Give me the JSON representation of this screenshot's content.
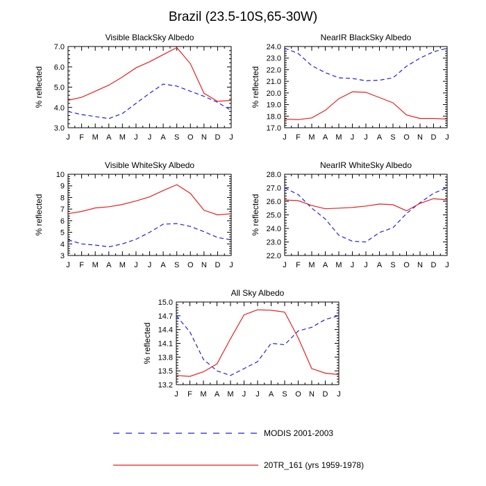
{
  "figure": {
    "title": "Brazil (23.5-10S,65-30W)",
    "months": [
      "J",
      "F",
      "M",
      "A",
      "M",
      "J",
      "J",
      "A",
      "S",
      "O",
      "N",
      "D",
      "J"
    ]
  },
  "legend": [
    {
      "label": "MODIS 2001-2003",
      "color": "#1f1fe6",
      "style": "dashed"
    },
    {
      "label": "20TR_161 (yrs 1959-1978)",
      "color": "#e61f1f",
      "style": "solid"
    }
  ],
  "chart_data": [
    {
      "type": "line",
      "title": "Visible BlackSky Albedo",
      "ylabel": "% reflected",
      "ylim": [
        3.0,
        7.0
      ],
      "yticks": [
        "3.0",
        "4.0",
        "5.0",
        "6.0",
        "7.0"
      ],
      "categories": [
        "J",
        "F",
        "M",
        "A",
        "M",
        "J",
        "J",
        "A",
        "S",
        "O",
        "N",
        "D",
        "J"
      ],
      "series": [
        {
          "name": "MODIS 2001-2003",
          "values": [
            3.8,
            3.65,
            3.55,
            3.45,
            3.7,
            4.2,
            4.7,
            5.15,
            5.05,
            4.8,
            4.55,
            4.25,
            3.85
          ]
        },
        {
          "name": "20TR_161 (yrs 1959-1978)",
          "values": [
            4.35,
            4.5,
            4.8,
            5.1,
            5.5,
            5.95,
            6.25,
            6.6,
            6.95,
            6.15,
            4.7,
            4.3,
            4.35
          ]
        }
      ]
    },
    {
      "type": "line",
      "title": "NearIR BlackSky Albedo",
      "ylabel": "% reflected",
      "ylim": [
        17.0,
        24.0
      ],
      "yticks": [
        "17.0",
        "18.0",
        "19.0",
        "20.0",
        "21.0",
        "22.0",
        "23.0",
        "24.0"
      ],
      "categories": [
        "J",
        "F",
        "M",
        "A",
        "M",
        "J",
        "J",
        "A",
        "S",
        "O",
        "N",
        "D",
        "J"
      ],
      "series": [
        {
          "name": "MODIS 2001-2003",
          "values": [
            23.85,
            23.4,
            22.35,
            21.75,
            21.3,
            21.25,
            21.05,
            21.1,
            21.3,
            22.3,
            23.0,
            23.55,
            23.85
          ]
        },
        {
          "name": "20TR_161 (yrs 1959-1978)",
          "values": [
            17.75,
            17.7,
            17.85,
            18.5,
            19.5,
            20.1,
            20.05,
            19.6,
            19.15,
            18.1,
            17.8,
            17.8,
            17.75
          ]
        }
      ]
    },
    {
      "type": "line",
      "title": "Visible WhiteSky Albedo",
      "ylabel": "% reflected",
      "ylim": [
        3,
        10
      ],
      "yticks": [
        "3",
        "4",
        "5",
        "6",
        "7",
        "8",
        "9",
        "10"
      ],
      "categories": [
        "J",
        "F",
        "M",
        "A",
        "M",
        "J",
        "J",
        "A",
        "S",
        "O",
        "N",
        "D",
        "J"
      ],
      "series": [
        {
          "name": "MODIS 2001-2003",
          "values": [
            4.35,
            4.0,
            3.9,
            3.75,
            4.0,
            4.4,
            5.0,
            5.7,
            5.75,
            5.5,
            5.05,
            4.55,
            4.35
          ]
        },
        {
          "name": "20TR_161 (yrs 1959-1978)",
          "values": [
            6.6,
            6.8,
            7.1,
            7.2,
            7.4,
            7.7,
            8.05,
            8.6,
            9.1,
            8.35,
            6.9,
            6.5,
            6.6
          ]
        }
      ]
    },
    {
      "type": "line",
      "title": "NearIR WhiteSky Albedo",
      "ylabel": "% reflected",
      "ylim": [
        22.0,
        28.0
      ],
      "yticks": [
        "22.0",
        "23.0",
        "24.0",
        "25.0",
        "26.0",
        "27.0",
        "28.0"
      ],
      "categories": [
        "J",
        "F",
        "M",
        "A",
        "M",
        "J",
        "J",
        "A",
        "S",
        "O",
        "N",
        "D",
        "J"
      ],
      "series": [
        {
          "name": "MODIS 2001-2003",
          "values": [
            27.0,
            26.5,
            25.5,
            24.7,
            23.5,
            23.05,
            23.0,
            23.7,
            24.05,
            25.1,
            25.9,
            26.6,
            27.0
          ]
        },
        {
          "name": "20TR_161 (yrs 1959-1978)",
          "values": [
            26.1,
            26.05,
            25.7,
            25.45,
            25.5,
            25.55,
            25.65,
            25.8,
            25.75,
            25.3,
            25.85,
            26.2,
            26.1
          ]
        }
      ]
    },
    {
      "type": "line",
      "title": "All Sky Albedo",
      "ylabel": "% reflected",
      "ylim": [
        13.2,
        15.0
      ],
      "yticks": [
        "13.2",
        "13.5",
        "13.8",
        "14.1",
        "14.4",
        "14.7",
        "15.0"
      ],
      "categories": [
        "J",
        "F",
        "M",
        "A",
        "M",
        "J",
        "J",
        "A",
        "S",
        "O",
        "N",
        "D",
        "J"
      ],
      "series": [
        {
          "name": "MODIS 2001-2003",
          "values": [
            14.7,
            14.35,
            13.75,
            13.5,
            13.4,
            13.55,
            13.7,
            14.1,
            14.07,
            14.37,
            14.45,
            14.62,
            14.7
          ]
        },
        {
          "name": "20TR_161 (yrs 1959-1978)",
          "values": [
            13.4,
            13.38,
            13.48,
            13.65,
            14.2,
            14.72,
            14.83,
            14.82,
            14.78,
            14.22,
            13.55,
            13.45,
            13.42
          ]
        }
      ]
    }
  ]
}
